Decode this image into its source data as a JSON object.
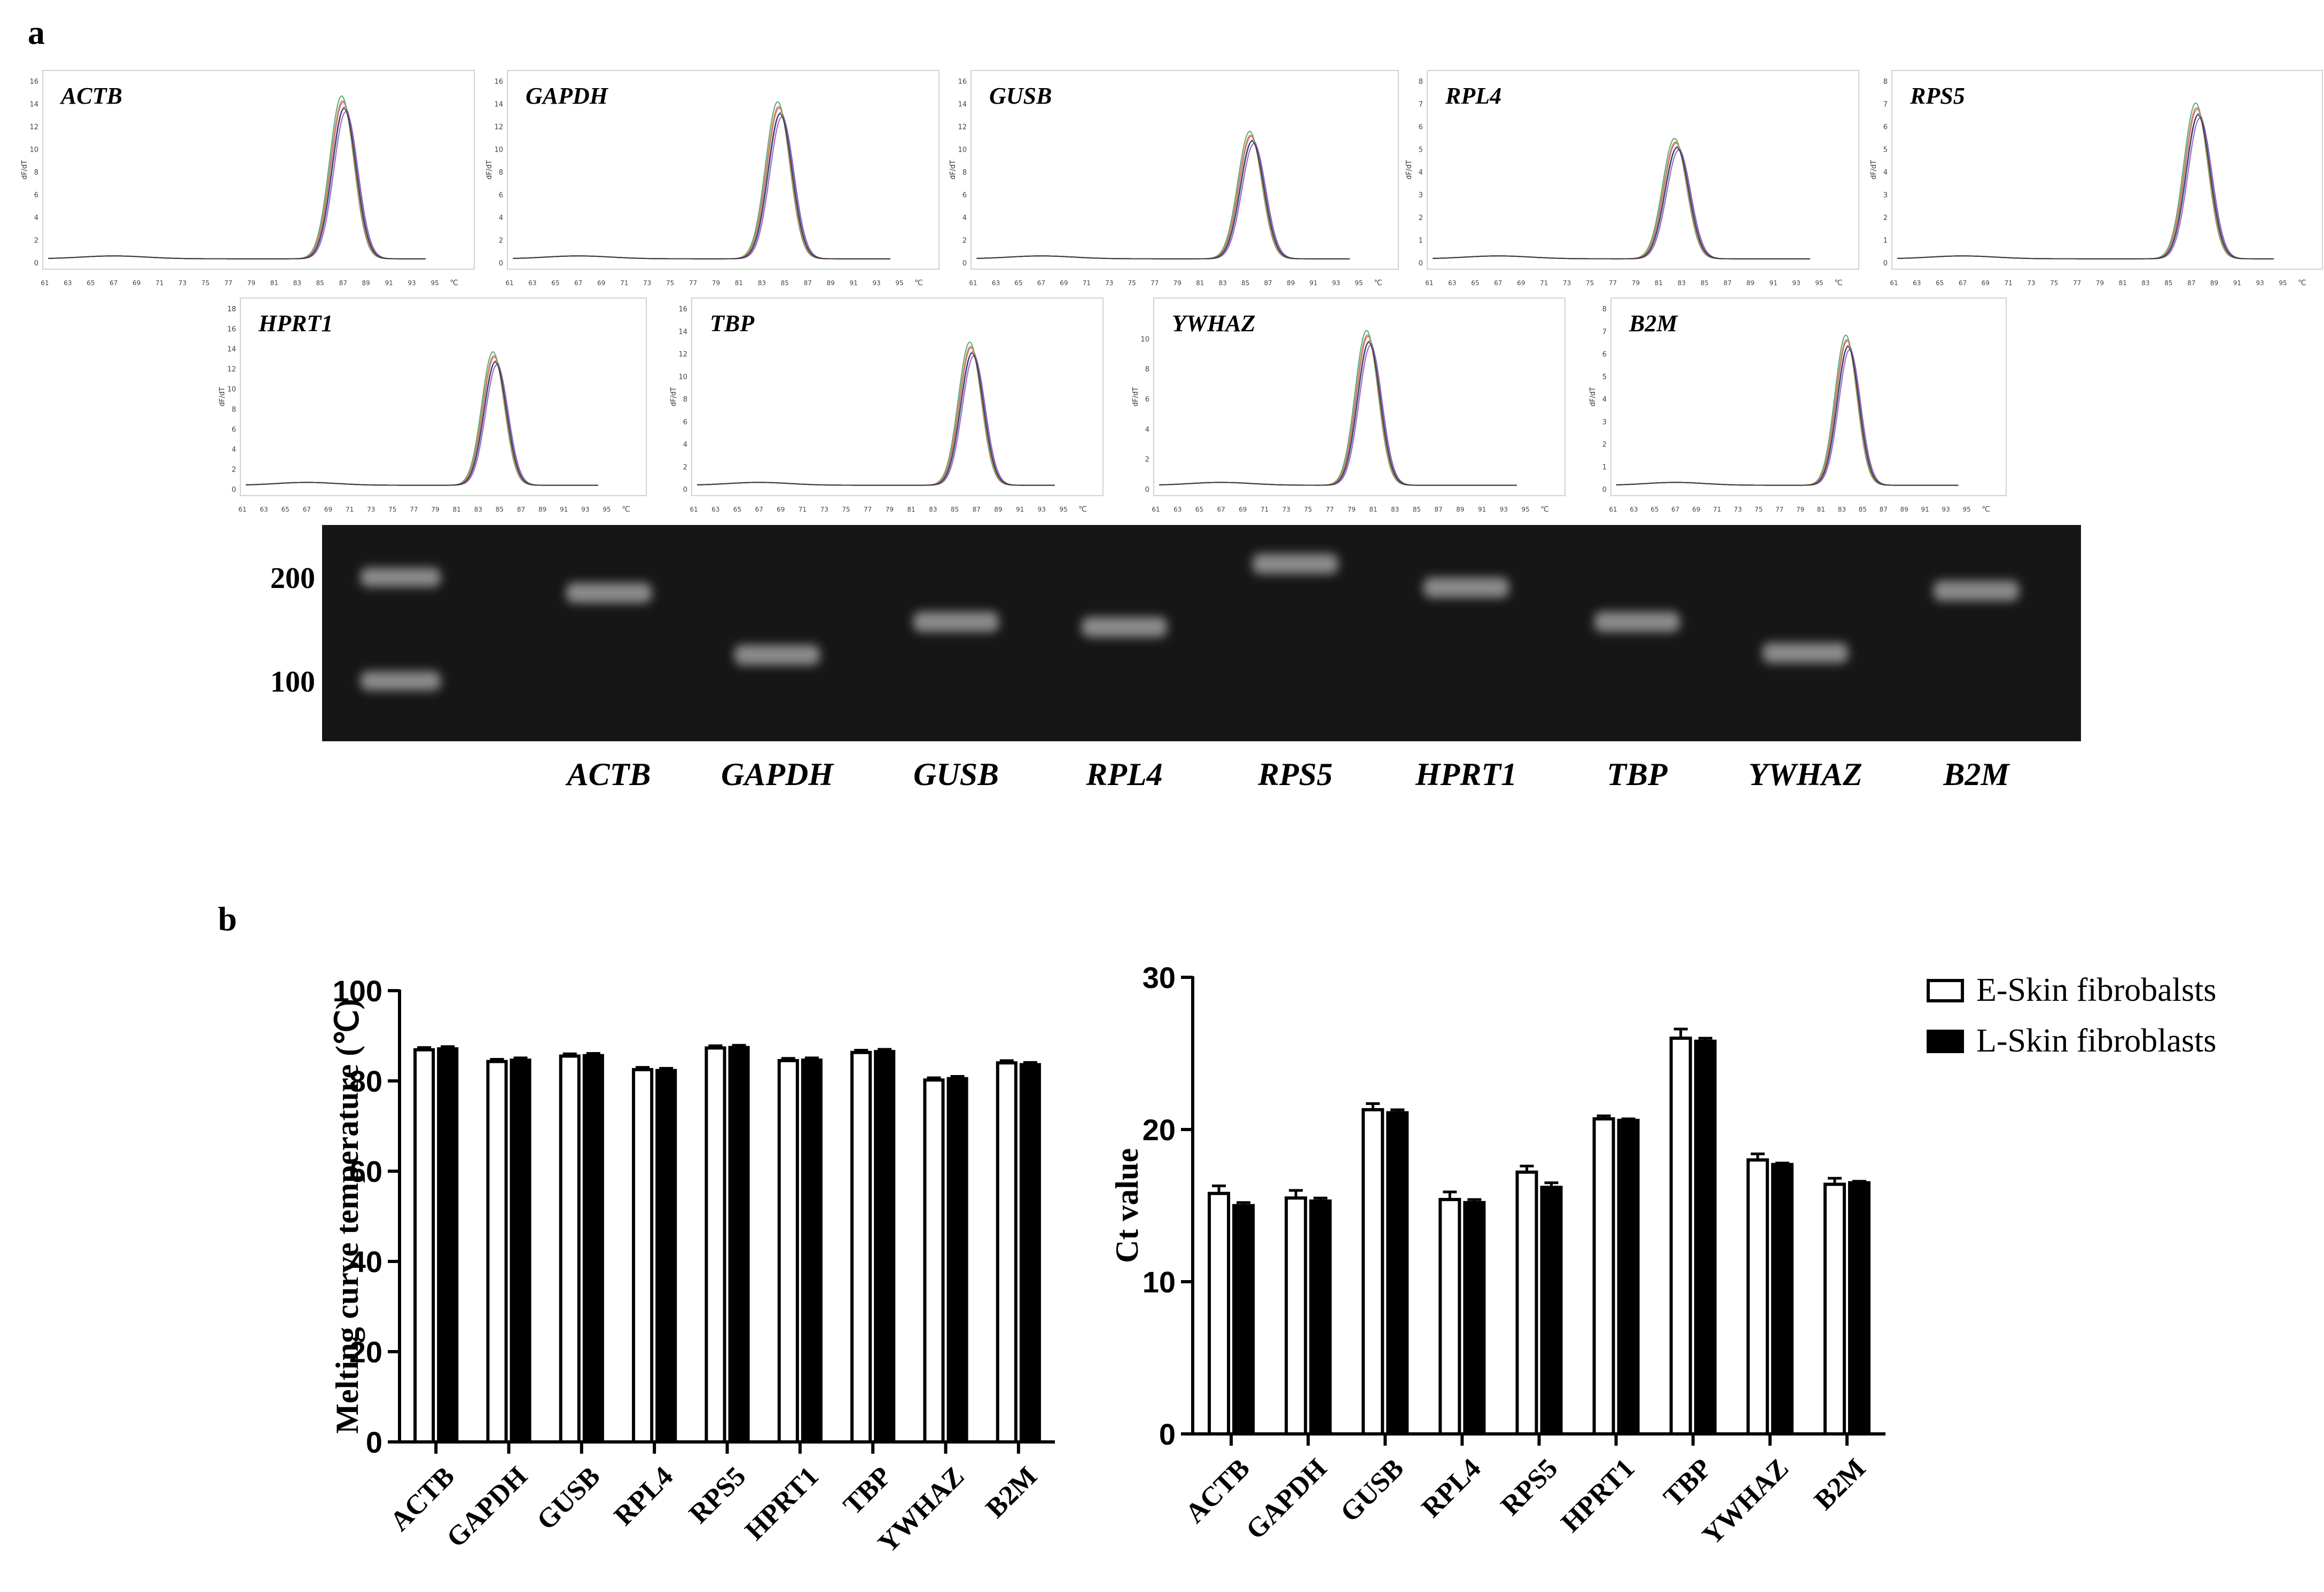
{
  "panel_labels": {
    "a": "a",
    "b": "b"
  },
  "melt_panels": [
    {
      "gene": "ACTB",
      "peak": 87.0,
      "height": 13.8,
      "ymax": 16,
      "yticks": [
        0,
        2,
        4,
        6,
        8,
        10,
        12,
        14,
        16
      ]
    },
    {
      "gene": "GAPDH",
      "peak": 84.5,
      "height": 13.3,
      "ymax": 16,
      "yticks": [
        0,
        2,
        4,
        6,
        8,
        10,
        12,
        14,
        16
      ]
    },
    {
      "gene": "GUSB",
      "peak": 85.5,
      "height": 10.8,
      "ymax": 16,
      "yticks": [
        0,
        2,
        4,
        6,
        8,
        10,
        12,
        14,
        16
      ]
    },
    {
      "gene": "RPL4",
      "peak": 82.5,
      "height": 5.1,
      "ymax": 8,
      "yticks": [
        0,
        1,
        2,
        3,
        4,
        5,
        6,
        7,
        8
      ]
    },
    {
      "gene": "RPS5",
      "peak": 87.5,
      "height": 6.6,
      "ymax": 8,
      "yticks": [
        0,
        1,
        2,
        3,
        4,
        5,
        6,
        7,
        8
      ]
    },
    {
      "gene": "HPRT1",
      "peak": 84.5,
      "height": 12.8,
      "ymax": 18,
      "yticks": [
        0,
        2,
        4,
        6,
        8,
        10,
        12,
        14,
        16,
        18
      ]
    },
    {
      "gene": "TBP",
      "peak": 86.5,
      "height": 12.2,
      "ymax": 16,
      "yticks": [
        0,
        2,
        4,
        6,
        8,
        10,
        12,
        14,
        16
      ]
    },
    {
      "gene": "YWHAZ",
      "peak": 80.5,
      "height": 9.9,
      "ymax": 12,
      "yticks": [
        0,
        2,
        4,
        6,
        8,
        10
      ]
    },
    {
      "gene": "B2M",
      "peak": 83.5,
      "height": 6.4,
      "ymax": 8,
      "yticks": [
        0,
        1,
        2,
        3,
        4,
        5,
        6,
        7,
        8
      ]
    }
  ],
  "melt_axis": {
    "ylabel": "dF/dT",
    "xticks": [
      61,
      63,
      65,
      67,
      69,
      71,
      73,
      75,
      77,
      79,
      81,
      83,
      85,
      87,
      89,
      91,
      93,
      95
    ],
    "unit": "℃"
  },
  "gel": {
    "markers": [
      {
        "label": "200",
        "bp": 200
      },
      {
        "label": "100",
        "bp": 100
      }
    ],
    "lanes": [
      {
        "gene": "ACTB",
        "bp": 185
      },
      {
        "gene": "GAPDH",
        "bp": 125
      },
      {
        "gene": "GUSB",
        "bp": 157
      },
      {
        "gene": "RPL4",
        "bp": 152
      },
      {
        "gene": "RPS5",
        "bp": 213
      },
      {
        "gene": "HPRT1",
        "bp": 190
      },
      {
        "gene": "TBP",
        "bp": 157
      },
      {
        "gene": "YWHAZ",
        "bp": 127
      },
      {
        "gene": "B2M",
        "bp": 187
      }
    ]
  },
  "chart_data": [
    {
      "type": "bar",
      "categories": [
        "ACTB",
        "GAPDH",
        "GUSB",
        "RPL4",
        "RPS5",
        "HPRT1",
        "TBP",
        "YWHAZ",
        "B2M"
      ],
      "series": [
        {
          "name": "E-Skin fibrobalsts",
          "values": [
            86.9,
            84.3,
            85.5,
            82.5,
            87.3,
            84.5,
            86.3,
            80.2,
            84.0
          ],
          "errors": [
            0.5,
            0.5,
            0.5,
            0.5,
            0.5,
            0.5,
            0.5,
            0.5,
            0.5
          ]
        },
        {
          "name": "L-Skin fibroblasts",
          "values": [
            87.1,
            84.6,
            85.6,
            82.3,
            87.4,
            84.6,
            86.5,
            80.5,
            83.6
          ],
          "errors": [
            0.5,
            0.5,
            0.5,
            0.5,
            0.5,
            0.5,
            0.5,
            0.5,
            0.5
          ]
        }
      ],
      "title": "",
      "xlabel": "",
      "ylabel": "Melting curve temperature (℃)",
      "ylim": [
        0,
        100
      ],
      "yticks": [
        0,
        20,
        40,
        60,
        80,
        100
      ]
    },
    {
      "type": "bar",
      "categories": [
        "ACTB",
        "GAPDH",
        "GUSB",
        "RPL4",
        "RPS5",
        "HPRT1",
        "TBP",
        "YWHAZ",
        "B2M"
      ],
      "series": [
        {
          "name": "E-Skin fibrobalsts",
          "values": [
            15.8,
            15.5,
            21.3,
            15.4,
            17.2,
            20.7,
            26.0,
            18.0,
            16.4
          ],
          "errors": [
            0.5,
            0.5,
            0.4,
            0.5,
            0.4,
            0.2,
            0.6,
            0.4,
            0.4
          ]
        },
        {
          "name": "L-Skin fibroblasts",
          "values": [
            15.0,
            15.3,
            21.1,
            15.2,
            16.2,
            20.6,
            25.8,
            17.7,
            16.5
          ],
          "errors": [
            0.2,
            0.2,
            0.2,
            0.2,
            0.3,
            0.1,
            0.2,
            0.1,
            0.1
          ]
        }
      ],
      "title": "",
      "xlabel": "",
      "ylabel": "Ct value",
      "ylim": [
        0,
        30
      ],
      "yticks": [
        0,
        10,
        20,
        30
      ]
    }
  ],
  "legend": [
    {
      "label": "E-Skin fibrobalsts",
      "fill": "#ffffff"
    },
    {
      "label": "L-Skin fibroblasts",
      "fill": "#000000"
    }
  ],
  "colors": {
    "curves": [
      "#d04a7a",
      "#4a6fbf",
      "#3a9a6a",
      "#8a4ab0",
      "#c98a3a",
      "#2a2a3a"
    ],
    "gel_bg": "#161616",
    "band": "#8a8a8a"
  }
}
